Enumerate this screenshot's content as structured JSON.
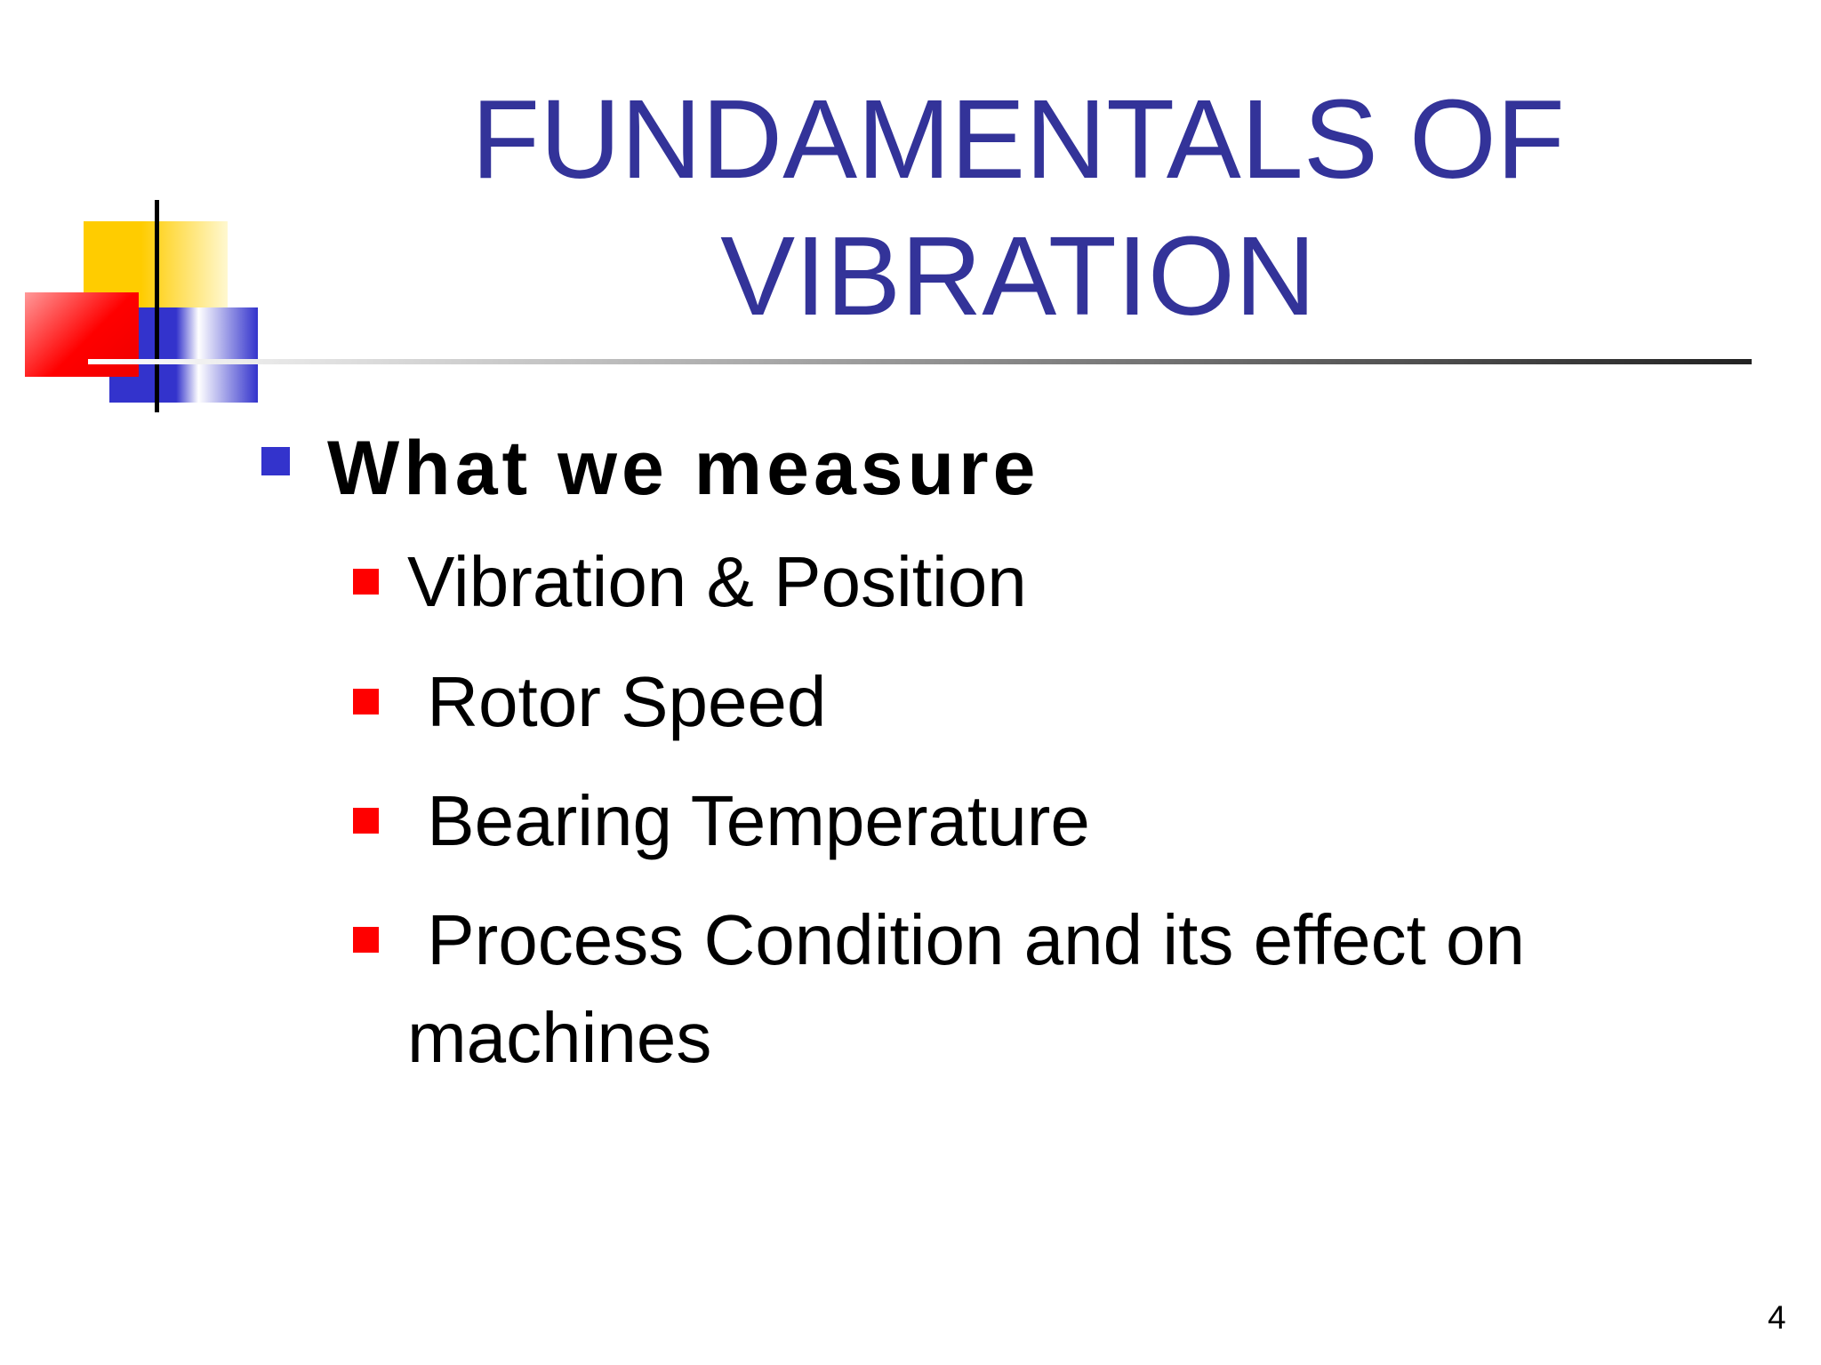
{
  "slide": {
    "title": "FUNDAMENTALS OF VIBRATION",
    "bullets": [
      {
        "text": "What we measure",
        "items": [
          "Vibration & Position",
          " Rotor Speed",
          " Bearing Temperature",
          " Process Condition and its effect on machines"
        ]
      }
    ],
    "page_number": "4"
  }
}
